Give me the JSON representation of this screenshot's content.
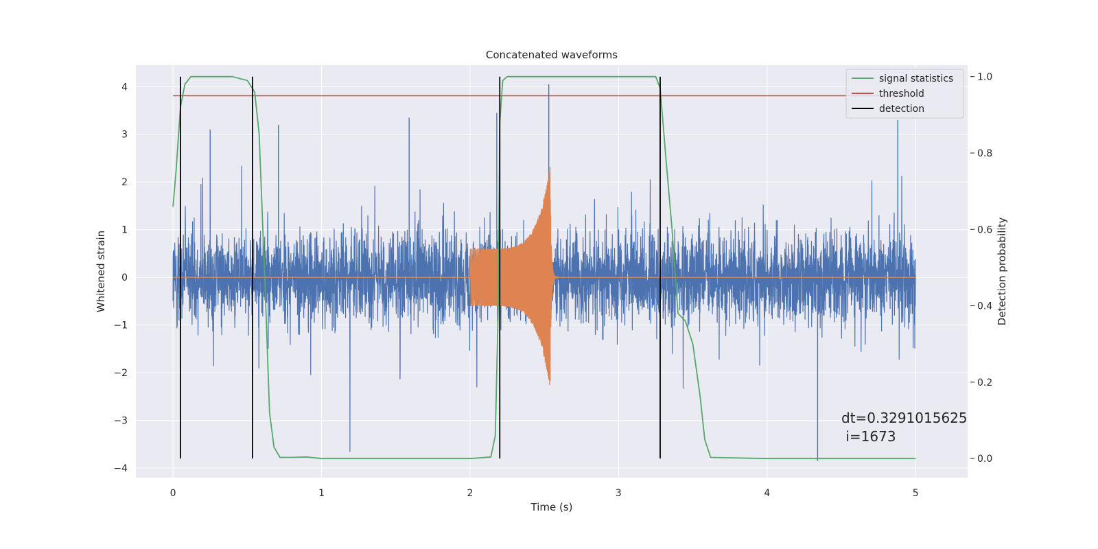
{
  "chart_data": {
    "type": "line",
    "title": "Concatenated waveforms",
    "xlabel": "Time (s)",
    "ylabel": "Whitened strain",
    "y2label": "Detection probability",
    "xlim": [
      -0.25,
      5.35
    ],
    "ylim": [
      -4.2,
      4.45
    ],
    "y2lim": [
      -0.05,
      1.03
    ],
    "xticks": [
      0,
      1,
      2,
      3,
      4,
      5
    ],
    "yticks": [
      -4,
      -3,
      -2,
      -1,
      0,
      1,
      2,
      3,
      4
    ],
    "y2ticks": [
      0.0,
      0.2,
      0.4,
      0.6,
      0.8,
      1.0
    ],
    "xtick_labels": [
      "0",
      "1",
      "2",
      "3",
      "4",
      "5"
    ],
    "ytick_labels": [
      "−4",
      "−3",
      "−2",
      "−1",
      "0",
      "1",
      "2",
      "3",
      "4"
    ],
    "y2tick_labels": [
      "0.0",
      "0.2",
      "0.4",
      "0.6",
      "0.8",
      "1.0"
    ],
    "grid": true,
    "legend": {
      "placement": "top-right",
      "entries": [
        {
          "label": "signal statistics",
          "color": "#55a868"
        },
        {
          "label": "threshold",
          "color": "#c44e52"
        },
        {
          "label": "detection",
          "color": "#000000"
        }
      ]
    },
    "series": [
      {
        "kind": "noise",
        "color": "#4c72b0",
        "x_range": [
          0,
          5
        ],
        "typical_amplitude": 0.65,
        "peak_max": 4.05,
        "peak_min": -3.85
      },
      {
        "kind": "chirp",
        "color": "#dd8452",
        "x_start": 2.0,
        "x_end": 2.54,
        "amp_start": 0.6,
        "amp_peak": 2.35,
        "flat_value": 0
      },
      {
        "name": "signal statistics",
        "axis": "right",
        "color": "#55a868",
        "x": [
          0.0,
          0.02,
          0.05,
          0.08,
          0.12,
          0.2,
          0.4,
          0.5,
          0.55,
          0.58,
          0.62,
          0.65,
          0.68,
          0.72,
          0.8,
          0.9,
          1.0,
          1.5,
          2.0,
          2.14,
          2.17,
          2.19,
          2.2,
          2.22,
          2.25,
          2.3,
          2.5,
          3.0,
          3.25,
          3.28,
          3.32,
          3.36,
          3.4,
          3.45,
          3.5,
          3.55,
          3.58,
          3.62,
          4.0,
          4.5,
          5.0
        ],
        "y": [
          0.66,
          0.75,
          0.92,
          0.98,
          1.0,
          1.0,
          1.0,
          0.99,
          0.96,
          0.85,
          0.45,
          0.12,
          0.03,
          0.003,
          0.003,
          0.004,
          0.0,
          0.0,
          0.0,
          0.004,
          0.06,
          0.4,
          0.88,
          0.99,
          1.0,
          1.0,
          1.0,
          1.0,
          1.0,
          0.97,
          0.78,
          0.6,
          0.38,
          0.36,
          0.3,
          0.16,
          0.05,
          0.003,
          0.0,
          0.0,
          0.0
        ]
      },
      {
        "name": "threshold",
        "axis": "right",
        "color": "#c44e52",
        "x": [
          0.0,
          5.0
        ],
        "y": [
          0.95,
          0.95
        ]
      }
    ],
    "detections": [
      0.05,
      0.535,
      2.2,
      3.28
    ],
    "detection_range": [
      0.0,
      1.0
    ],
    "annotation": {
      "line1": "dt=0.3291015625",
      "line2": " i=1673",
      "x": 4.5,
      "y": -3.0
    }
  }
}
